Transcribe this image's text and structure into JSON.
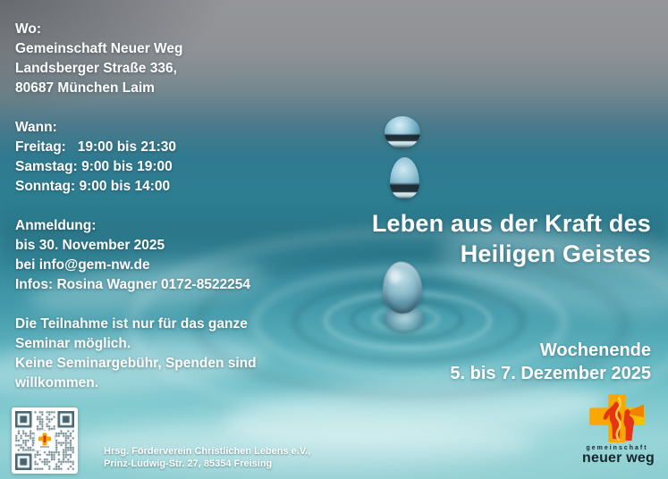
{
  "flyer": {
    "where": {
      "label": "Wo:",
      "lines": [
        "Gemeinschaft Neuer Weg",
        "Landsberger Straße 336,",
        "80687 München Laim"
      ]
    },
    "when": {
      "label": "Wann:",
      "lines": [
        "Freitag:   19:00 bis 21:30",
        "Samstag: 9:00 bis 19:00",
        "Sonntag: 9:00 bis 14:00"
      ]
    },
    "registration": {
      "label": "Anmeldung:",
      "lines": [
        "bis 30. November 2025",
        "bei info@gem-nw.de",
        "Infos: Rosina Wagner 0172-8522254"
      ]
    },
    "participation": {
      "lines": [
        "Die Teilnahme ist nur für das ganze",
        "Seminar möglich.",
        "Keine Seminargebühr, Spenden sind",
        "willkommen."
      ]
    },
    "title": {
      "line1": "Leben aus der Kraft des",
      "line2": "Heiligen Geistes"
    },
    "event_date": {
      "line1": "Wochenende",
      "line2": "5. bis 7. Dezember 2025"
    },
    "publisher": {
      "line1": "Hrsg. Förderverein Christlichen Lebens e.V.,",
      "line2": "Prinz-Ludwig-Str. 27, 85354 Freising"
    },
    "brand": {
      "name_top": "gemeinschaft",
      "name_bottom": "neuer weg"
    },
    "colors": {
      "gray_top": "#96969a",
      "teal_mid": "#2e8093",
      "turquoise_bottom": "#7fc8cc",
      "text": "#ffffff",
      "qr_module": "#45646f",
      "accent_yellow": "#f8a800",
      "accent_orange": "#ef8200",
      "accent_red": "#e63312",
      "brand_text": "#16262e"
    }
  }
}
